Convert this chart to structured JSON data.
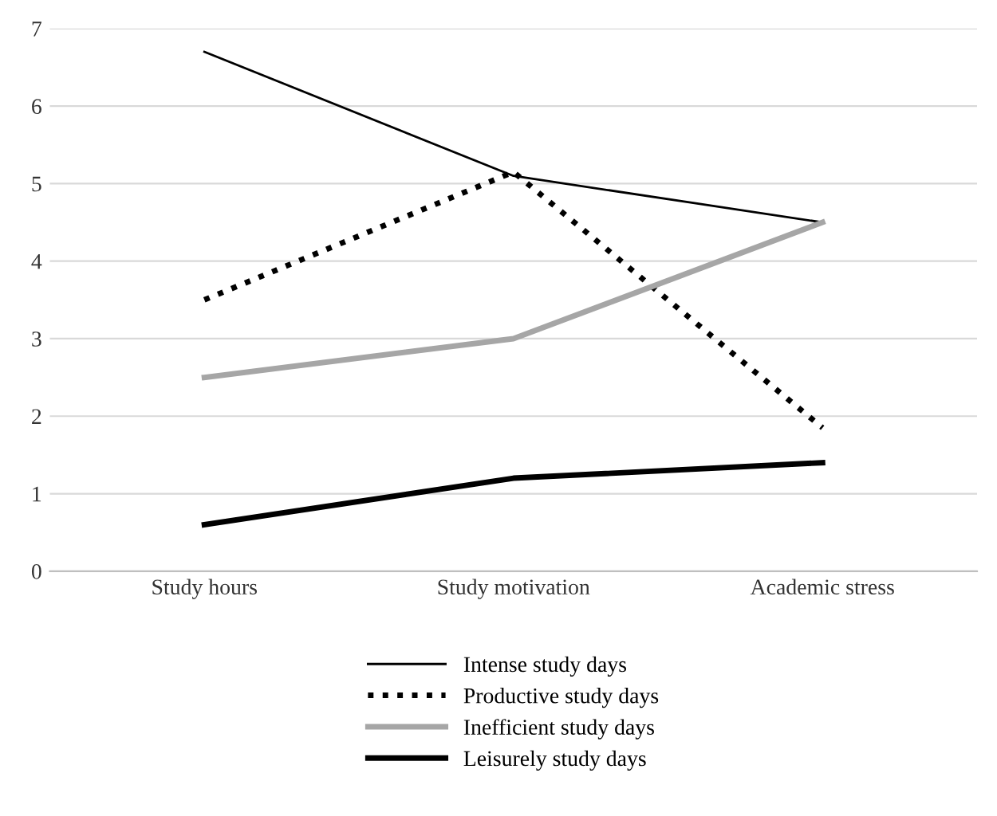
{
  "chart_data": {
    "type": "line",
    "categories": [
      "Study hours",
      "Study motivation",
      "Academic stress"
    ],
    "series": [
      {
        "name": "Intense study days",
        "color": "#000000",
        "values": [
          6.7,
          5.1,
          4.5
        ],
        "line_style": "solid"
      },
      {
        "name": "Productive study days",
        "color": "#000000",
        "values": [
          3.5,
          5.15,
          1.85
        ],
        "line_style": "dotted"
      },
      {
        "name": "Inefficient study days",
        "color": "#a6a6a6",
        "values": [
          2.5,
          3.0,
          4.5
        ],
        "line_style": "solid"
      },
      {
        "name": "Leisurely study days",
        "color": "#000000",
        "values": [
          0.6,
          1.2,
          1.4
        ],
        "line_style": "solid"
      }
    ],
    "ylim": [
      0,
      7
    ],
    "yticks": [
      0,
      1,
      2,
      3,
      4,
      5,
      6,
      7
    ],
    "grid": "y",
    "legend": "bottom",
    "marker": "none"
  }
}
